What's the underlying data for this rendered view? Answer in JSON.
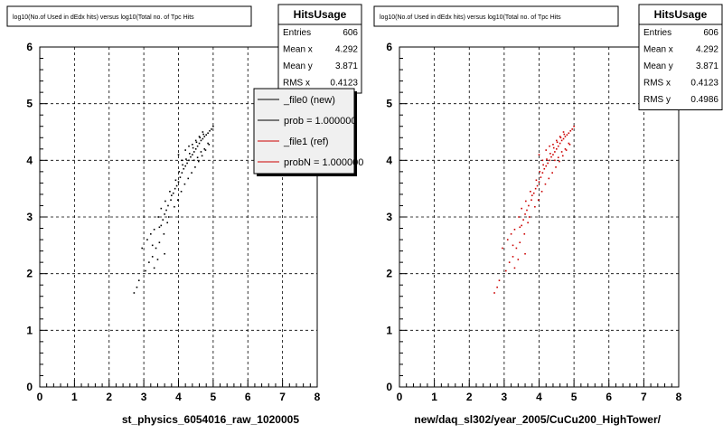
{
  "chart_data": [
    {
      "type": "scatter",
      "title": "log10(No.of Used in dEdx hits) versus log10(Total no. of Tpc Hits",
      "xlabel": "st_physics_6054016_raw_1020005",
      "ylabel": "",
      "xlim": [
        0,
        8
      ],
      "ylim": [
        0,
        6
      ],
      "xticks": [
        "0",
        "1",
        "2",
        "3",
        "4",
        "5",
        "6",
        "7",
        "8"
      ],
      "yticks": [
        "0",
        "1",
        "2",
        "3",
        "4",
        "5",
        "6"
      ],
      "grid": true,
      "marker_color": "#000000",
      "stats": {
        "name": "HitsUsage",
        "rows": [
          {
            "label": "Entries",
            "value": "606"
          },
          {
            "label": "Mean x",
            "value": "4.292"
          },
          {
            "label": "Mean y",
            "value": "3.871"
          },
          {
            "label": "RMS x",
            "value": "0.4123"
          }
        ]
      },
      "legend": {
        "placement": "top-right",
        "entries": [
          {
            "label": "_file0 (new)",
            "color": "#000000"
          },
          {
            "label": "prob = 1.000000",
            "color": "#000000"
          },
          {
            "label": "_file1 (ref)",
            "color": "#cc0000"
          },
          {
            "label": "probN = 1.000000",
            "color": "#cc0000"
          }
        ]
      },
      "points": [
        [
          2.72,
          1.66
        ],
        [
          2.8,
          1.76
        ],
        [
          2.86,
          1.88
        ],
        [
          3.05,
          2.05
        ],
        [
          3.15,
          2.2
        ],
        [
          3.25,
          2.3
        ],
        [
          3.4,
          2.25
        ],
        [
          3.45,
          2.55
        ],
        [
          3.1,
          2.6
        ],
        [
          3.2,
          2.7
        ],
        [
          3.3,
          2.78
        ],
        [
          3.5,
          2.85
        ],
        [
          3.55,
          2.95
        ],
        [
          3.42,
          3.0
        ],
        [
          3.6,
          3.05
        ],
        [
          3.65,
          3.12
        ],
        [
          3.5,
          3.15
        ],
        [
          3.7,
          3.2
        ],
        [
          3.62,
          3.28
        ],
        [
          3.78,
          3.3
        ],
        [
          3.8,
          3.38
        ],
        [
          3.85,
          3.42
        ],
        [
          3.9,
          3.5
        ],
        [
          3.75,
          3.45
        ],
        [
          3.95,
          3.55
        ],
        [
          4.0,
          3.62
        ],
        [
          3.92,
          3.65
        ],
        [
          4.05,
          3.7
        ],
        [
          4.1,
          3.78
        ],
        [
          4.02,
          3.8
        ],
        [
          4.15,
          3.85
        ],
        [
          4.2,
          3.9
        ],
        [
          4.12,
          3.92
        ],
        [
          4.25,
          3.95
        ],
        [
          4.3,
          4.0
        ],
        [
          4.22,
          4.02
        ],
        [
          4.35,
          4.06
        ],
        [
          4.4,
          4.1
        ],
        [
          4.32,
          4.12
        ],
        [
          4.45,
          4.15
        ],
        [
          4.5,
          4.2
        ],
        [
          4.42,
          4.22
        ],
        [
          4.55,
          4.25
        ],
        [
          4.6,
          4.3
        ],
        [
          4.52,
          4.32
        ],
        [
          4.65,
          4.35
        ],
        [
          4.7,
          4.38
        ],
        [
          4.62,
          4.4
        ],
        [
          4.75,
          4.42
        ],
        [
          4.8,
          4.45
        ],
        [
          4.72,
          4.46
        ],
        [
          4.85,
          4.48
        ],
        [
          4.9,
          4.52
        ],
        [
          4.95,
          4.55
        ],
        [
          5.0,
          4.6
        ],
        [
          3.35,
          2.45
        ],
        [
          3.58,
          2.7
        ],
        [
          3.68,
          2.9
        ],
        [
          3.72,
          3.0
        ],
        [
          3.88,
          3.18
        ],
        [
          3.98,
          3.3
        ],
        [
          4.08,
          3.45
        ],
        [
          4.18,
          3.58
        ],
        [
          4.28,
          3.68
        ],
        [
          4.38,
          3.78
        ],
        [
          4.48,
          3.88
        ],
        [
          4.58,
          3.98
        ],
        [
          4.68,
          4.08
        ],
        [
          4.78,
          4.18
        ],
        [
          4.88,
          4.28
        ],
        [
          3.3,
          2.1
        ],
        [
          3.6,
          2.35
        ],
        [
          2.95,
          2.45
        ],
        [
          3.25,
          2.5
        ],
        [
          3.45,
          2.82
        ],
        [
          4.0,
          4.1
        ],
        [
          4.1,
          4.0
        ],
        [
          4.2,
          4.18
        ],
        [
          4.3,
          4.25
        ],
        [
          4.4,
          4.28
        ],
        [
          4.5,
          4.35
        ],
        [
          4.6,
          4.42
        ],
        [
          4.7,
          4.5
        ],
        [
          4.45,
          4.0
        ],
        [
          4.55,
          4.05
        ],
        [
          4.65,
          4.15
        ],
        [
          4.75,
          4.2
        ],
        [
          4.85,
          4.3
        ]
      ]
    },
    {
      "type": "scatter",
      "title": "log10(No.of Used in dEdx hits) versus log10(Total no. of Tpc Hits",
      "xlabel": "new/daq_sl302/year_2005/CuCu200_HighTower/",
      "ylabel": "",
      "xlim": [
        0,
        8
      ],
      "ylim": [
        0,
        6
      ],
      "xticks": [
        "0",
        "1",
        "2",
        "3",
        "4",
        "5",
        "6",
        "7",
        "8"
      ],
      "yticks": [
        "0",
        "1",
        "2",
        "3",
        "4",
        "5",
        "6"
      ],
      "grid": true,
      "marker_color": "#cc0000",
      "stats": {
        "name": "HitsUsage",
        "rows": [
          {
            "label": "Entries",
            "value": "606"
          },
          {
            "label": "Mean x",
            "value": "4.292"
          },
          {
            "label": "Mean y",
            "value": "3.871"
          },
          {
            "label": "RMS x",
            "value": "0.4123"
          },
          {
            "label": "RMS y",
            "value": "0.4986"
          }
        ]
      },
      "points": [
        [
          2.72,
          1.66
        ],
        [
          2.8,
          1.76
        ],
        [
          2.86,
          1.88
        ],
        [
          3.05,
          2.05
        ],
        [
          3.15,
          2.2
        ],
        [
          3.25,
          2.3
        ],
        [
          3.4,
          2.25
        ],
        [
          3.45,
          2.55
        ],
        [
          3.1,
          2.6
        ],
        [
          3.2,
          2.7
        ],
        [
          3.3,
          2.78
        ],
        [
          3.5,
          2.85
        ],
        [
          3.55,
          2.95
        ],
        [
          3.42,
          3.0
        ],
        [
          3.6,
          3.05
        ],
        [
          3.65,
          3.12
        ],
        [
          3.5,
          3.15
        ],
        [
          3.7,
          3.2
        ],
        [
          3.62,
          3.28
        ],
        [
          3.78,
          3.3
        ],
        [
          3.8,
          3.38
        ],
        [
          3.85,
          3.42
        ],
        [
          3.9,
          3.5
        ],
        [
          3.75,
          3.45
        ],
        [
          3.95,
          3.55
        ],
        [
          4.0,
          3.62
        ],
        [
          3.92,
          3.65
        ],
        [
          4.05,
          3.7
        ],
        [
          4.1,
          3.78
        ],
        [
          4.02,
          3.8
        ],
        [
          4.15,
          3.85
        ],
        [
          4.2,
          3.9
        ],
        [
          4.12,
          3.92
        ],
        [
          4.25,
          3.95
        ],
        [
          4.3,
          4.0
        ],
        [
          4.22,
          4.02
        ],
        [
          4.35,
          4.06
        ],
        [
          4.4,
          4.1
        ],
        [
          4.32,
          4.12
        ],
        [
          4.45,
          4.15
        ],
        [
          4.5,
          4.2
        ],
        [
          4.42,
          4.22
        ],
        [
          4.55,
          4.25
        ],
        [
          4.6,
          4.3
        ],
        [
          4.52,
          4.32
        ],
        [
          4.65,
          4.35
        ],
        [
          4.7,
          4.38
        ],
        [
          4.62,
          4.4
        ],
        [
          4.75,
          4.42
        ],
        [
          4.8,
          4.45
        ],
        [
          4.72,
          4.46
        ],
        [
          4.85,
          4.48
        ],
        [
          4.9,
          4.52
        ],
        [
          4.95,
          4.55
        ],
        [
          5.0,
          4.6
        ],
        [
          3.35,
          2.45
        ],
        [
          3.58,
          2.7
        ],
        [
          3.68,
          2.9
        ],
        [
          3.72,
          3.0
        ],
        [
          3.88,
          3.18
        ],
        [
          3.98,
          3.3
        ],
        [
          4.08,
          3.45
        ],
        [
          4.18,
          3.58
        ],
        [
          4.28,
          3.68
        ],
        [
          4.38,
          3.78
        ],
        [
          4.48,
          3.88
        ],
        [
          4.58,
          3.98
        ],
        [
          4.68,
          4.08
        ],
        [
          4.78,
          4.18
        ],
        [
          4.88,
          4.28
        ],
        [
          3.3,
          2.1
        ],
        [
          3.6,
          2.35
        ],
        [
          2.95,
          2.45
        ],
        [
          3.25,
          2.5
        ],
        [
          3.45,
          2.82
        ],
        [
          4.0,
          4.1
        ],
        [
          4.1,
          4.0
        ],
        [
          4.2,
          4.18
        ],
        [
          4.3,
          4.25
        ],
        [
          4.4,
          4.28
        ],
        [
          4.5,
          4.35
        ],
        [
          4.6,
          4.42
        ],
        [
          4.7,
          4.5
        ],
        [
          4.45,
          4.0
        ],
        [
          4.55,
          4.05
        ],
        [
          4.65,
          4.15
        ],
        [
          4.75,
          4.2
        ],
        [
          4.85,
          4.3
        ]
      ]
    }
  ]
}
